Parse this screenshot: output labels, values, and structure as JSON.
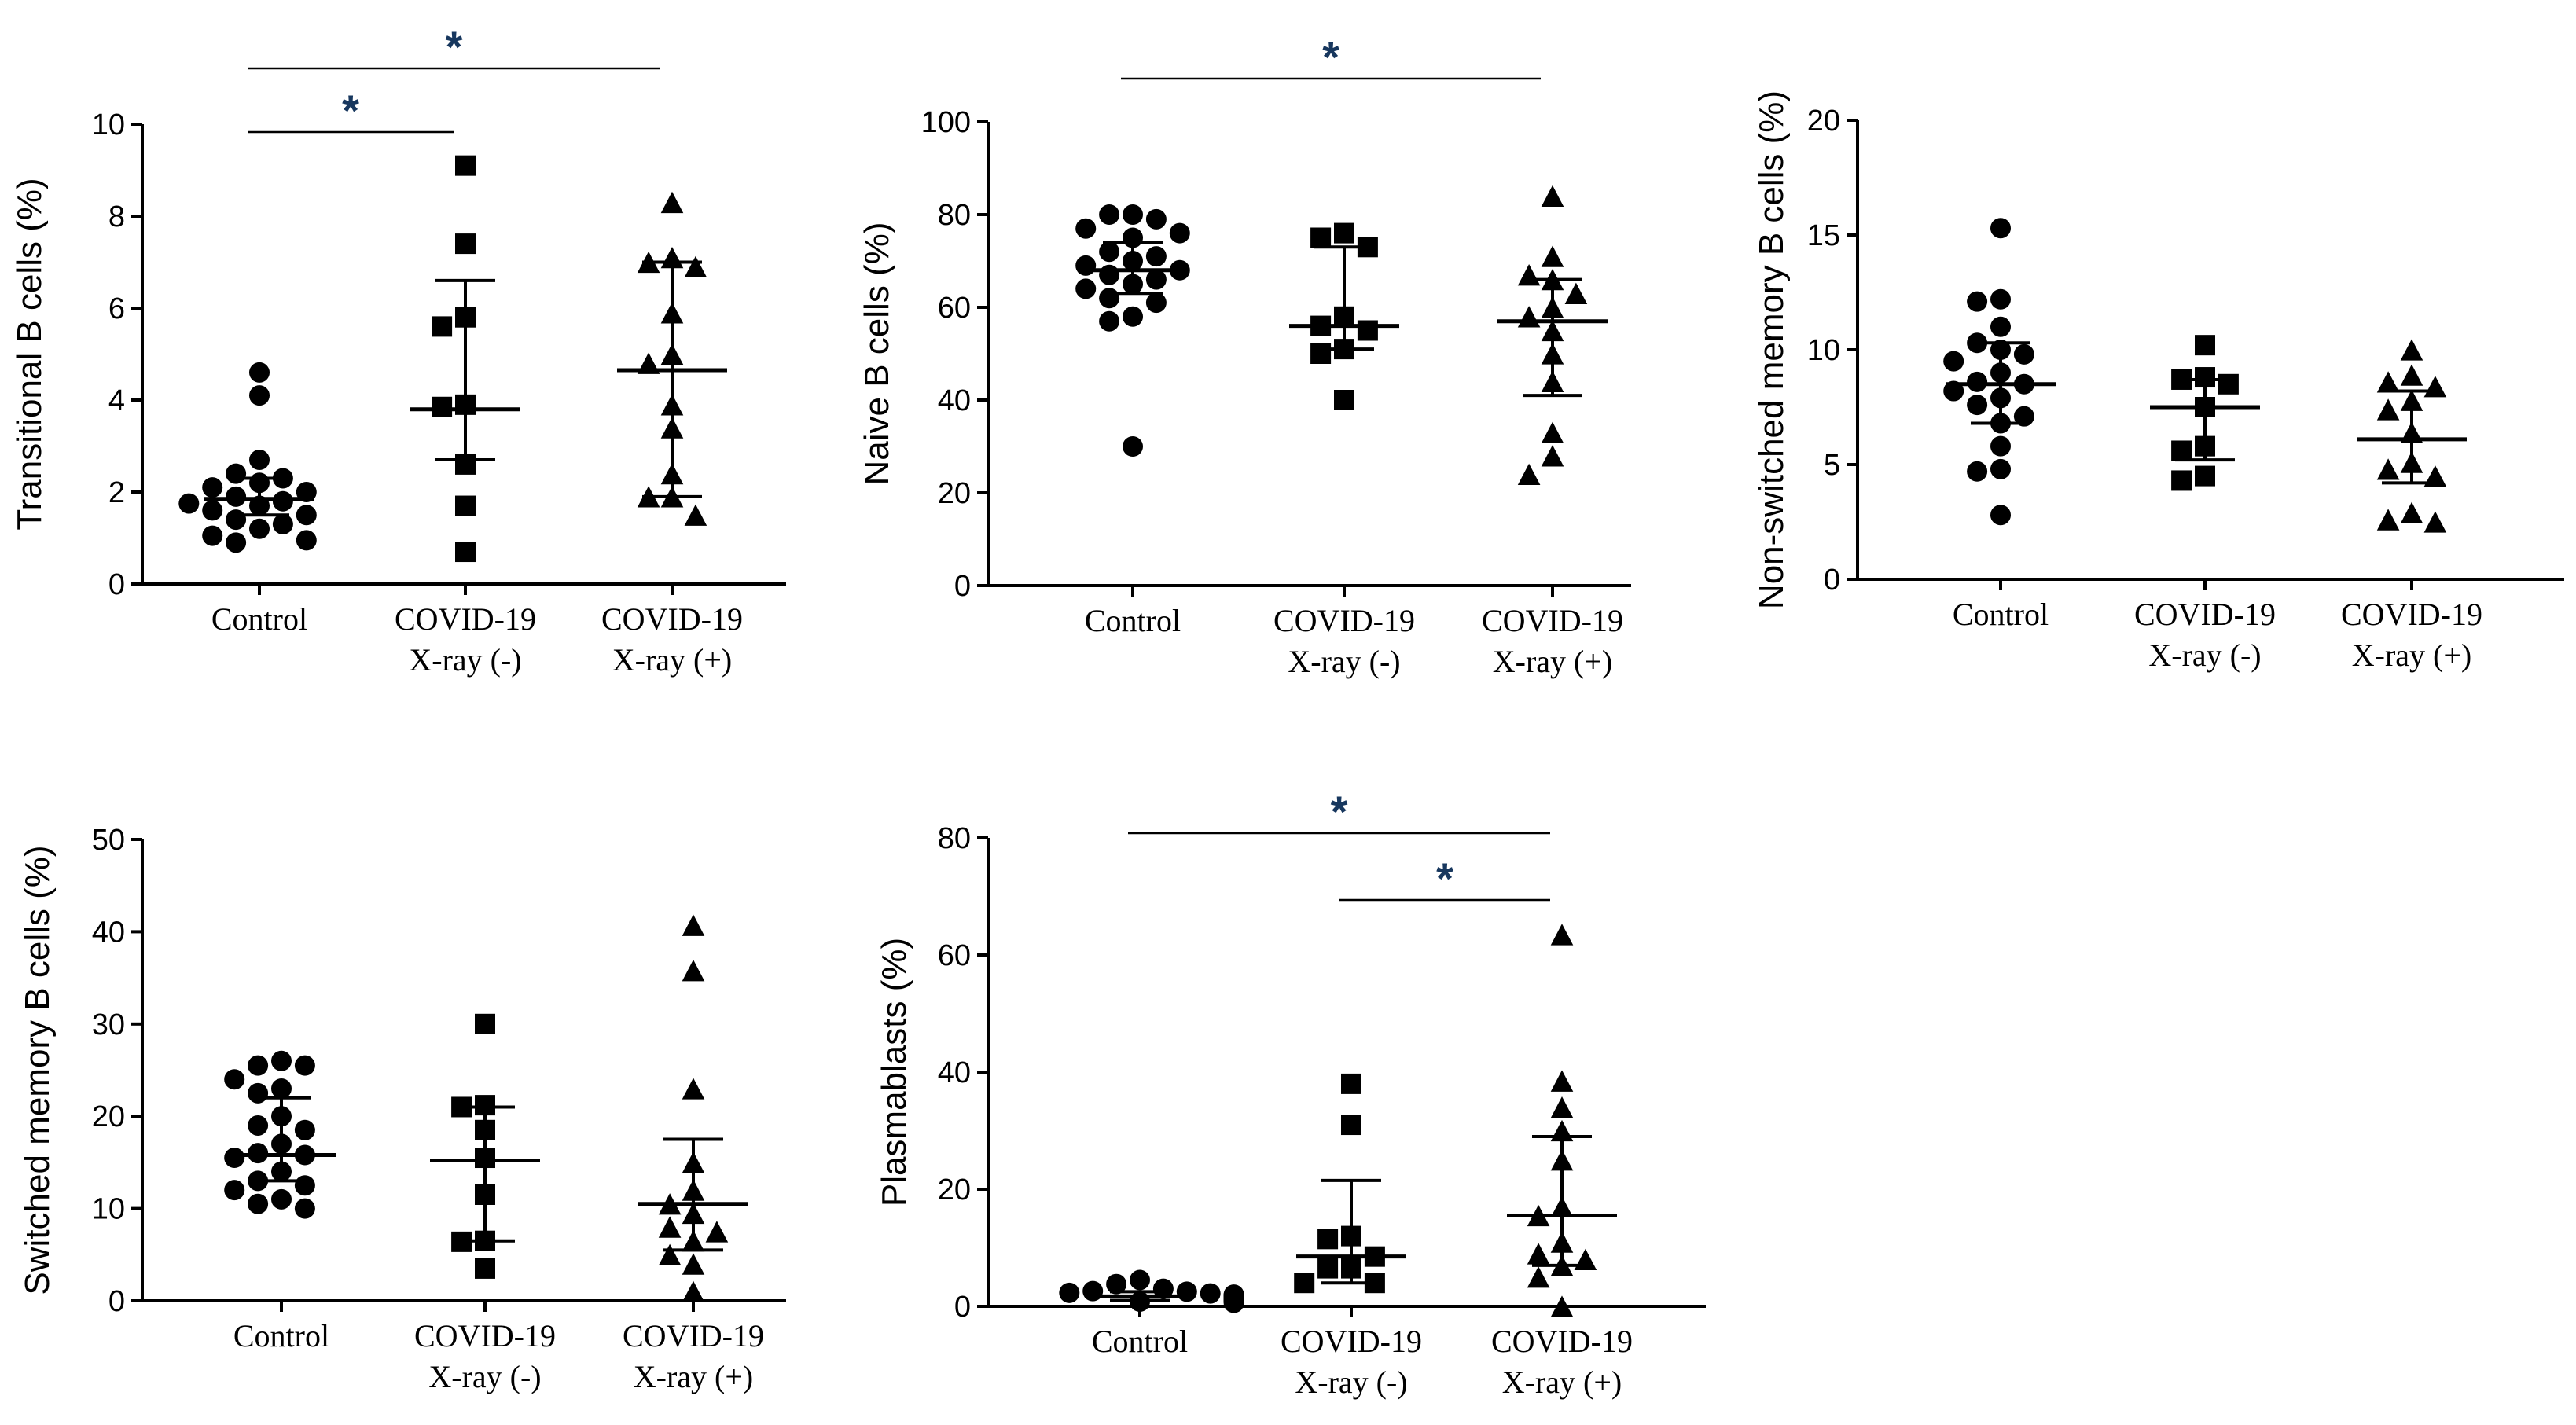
{
  "chart_data": [
    {
      "type": "scatter",
      "ylabel": "Transitional B cells (%)",
      "ylim": [
        0,
        10
      ],
      "yticks": [
        "0",
        "2",
        "4",
        "6",
        "8",
        "10"
      ],
      "categories": [
        {
          "line1": "Control",
          "line2": ""
        },
        {
          "line1": "COVID-19",
          "line2": "X-ray (-)"
        },
        {
          "line1": "COVID-19",
          "line2": "X-ray (+)"
        }
      ],
      "groups": [
        {
          "marker": "circle",
          "median": 1.85,
          "q1": 1.5,
          "q3": 2.3,
          "values": [
            4.6,
            4.1,
            2.7,
            2.4,
            2.3,
            2.2,
            2.1,
            2.0,
            1.9,
            1.8,
            1.75,
            1.7,
            1.6,
            1.5,
            1.4,
            1.3,
            1.2,
            1.05,
            0.95,
            0.9
          ]
        },
        {
          "marker": "square",
          "median": 3.8,
          "q1": 2.7,
          "q3": 6.6,
          "values": [
            9.1,
            7.4,
            5.8,
            5.6,
            3.9,
            3.85,
            2.6,
            1.7,
            0.7
          ]
        },
        {
          "marker": "triangle",
          "median": 4.65,
          "q1": 1.9,
          "q3": 7.0,
          "values": [
            8.3,
            7.1,
            7.0,
            6.9,
            5.9,
            5.0,
            4.8,
            3.9,
            3.4,
            2.4,
            1.9,
            1.9,
            1.5
          ]
        }
      ],
      "significance": [
        {
          "from": 0,
          "to": 2,
          "label": "*"
        },
        {
          "from": 0,
          "to": 1,
          "label": "*"
        }
      ]
    },
    {
      "type": "scatter",
      "ylabel": "Naive B cells (%)",
      "ylim": [
        0,
        100
      ],
      "yticks": [
        "0",
        "20",
        "40",
        "60",
        "80",
        "100"
      ],
      "categories": [
        {
          "line1": "Control",
          "line2": ""
        },
        {
          "line1": "COVID-19",
          "line2": "X-ray (-)"
        },
        {
          "line1": "COVID-19",
          "line2": "X-ray (+)"
        }
      ],
      "groups": [
        {
          "marker": "circle",
          "median": 68,
          "q1": 63,
          "q3": 74,
          "values": [
            80,
            80,
            79,
            77,
            76,
            75,
            72,
            71,
            70,
            69,
            68,
            67,
            66,
            65,
            64,
            62,
            61,
            58,
            57,
            30
          ]
        },
        {
          "marker": "square",
          "median": 56,
          "q1": 51,
          "q3": 73,
          "values": [
            76,
            75,
            73,
            58,
            56,
            55,
            51,
            50,
            40
          ]
        },
        {
          "marker": "triangle",
          "median": 57,
          "q1": 41,
          "q3": 66,
          "values": [
            84,
            71,
            67,
            66,
            63,
            60,
            58,
            55,
            50,
            44,
            33,
            28,
            24
          ]
        }
      ],
      "significance": [
        {
          "from": 0,
          "to": 2,
          "label": "*"
        }
      ]
    },
    {
      "type": "scatter",
      "ylabel": "Non-switched memory B cells (%)",
      "ylim": [
        0,
        20
      ],
      "yticks": [
        "0",
        "5",
        "10",
        "15",
        "20"
      ],
      "categories": [
        {
          "line1": "Control",
          "line2": ""
        },
        {
          "line1": "COVID-19",
          "line2": "X-ray (-)"
        },
        {
          "line1": "COVID-19",
          "line2": "X-ray (+)"
        }
      ],
      "groups": [
        {
          "marker": "circle",
          "median": 8.5,
          "q1": 6.8,
          "q3": 10.3,
          "values": [
            15.3,
            12.2,
            12.1,
            11.0,
            10.3,
            10.0,
            9.8,
            9.5,
            9.0,
            8.6,
            8.5,
            8.2,
            7.9,
            7.6,
            7.1,
            6.8,
            5.8,
            4.8,
            4.7,
            2.8
          ]
        },
        {
          "marker": "square",
          "median": 7.5,
          "q1": 5.2,
          "q3": 8.7,
          "values": [
            10.2,
            8.8,
            8.7,
            8.5,
            7.5,
            5.8,
            5.6,
            4.5,
            4.3
          ]
        },
        {
          "marker": "triangle",
          "median": 6.1,
          "q1": 4.2,
          "q3": 8.2,
          "values": [
            10.0,
            8.9,
            8.6,
            8.4,
            7.8,
            7.4,
            6.4,
            5.1,
            4.8,
            4.5,
            2.9,
            2.6,
            2.5
          ]
        }
      ],
      "significance": []
    },
    {
      "type": "scatter",
      "ylabel": "Switched memory B cells (%)",
      "ylim": [
        0,
        50
      ],
      "yticks": [
        "0",
        "10",
        "20",
        "30",
        "40",
        "50"
      ],
      "categories": [
        {
          "line1": "Control",
          "line2": ""
        },
        {
          "line1": "COVID-19",
          "line2": "X-ray (-)"
        },
        {
          "line1": "COVID-19",
          "line2": "X-ray (+)"
        }
      ],
      "groups": [
        {
          "marker": "circle",
          "median": 15.8,
          "q1": 13,
          "q3": 22,
          "values": [
            26,
            25.5,
            25.5,
            24,
            23,
            22.5,
            20,
            19,
            18.5,
            17,
            16,
            15.8,
            15.5,
            14,
            13,
            12.5,
            12,
            11,
            10.5,
            10
          ]
        },
        {
          "marker": "square",
          "median": 15.2,
          "q1": 6.5,
          "q3": 21,
          "values": [
            30,
            21.2,
            21,
            18.5,
            15.5,
            11.5,
            6.5,
            6.4,
            3.5
          ]
        },
        {
          "marker": "triangle",
          "median": 10.5,
          "q1": 5.5,
          "q3": 17.5,
          "values": [
            40.7,
            35.8,
            23,
            15,
            12,
            10.5,
            9.5,
            8,
            7.5,
            6.5,
            5,
            4,
            1
          ]
        }
      ],
      "significance": []
    },
    {
      "type": "scatter",
      "ylabel": "Plasmablasts (%)",
      "ylim": [
        0,
        80
      ],
      "yticks": [
        "0",
        "20",
        "40",
        "60",
        "80"
      ],
      "categories": [
        {
          "line1": "Control",
          "line2": ""
        },
        {
          "line1": "COVID-19",
          "line2": "X-ray (-)"
        },
        {
          "line1": "COVID-19",
          "line2": "X-ray (+)"
        }
      ],
      "groups": [
        {
          "marker": "circle",
          "median": 1.7,
          "q1": 1.0,
          "q3": 2.5,
          "values": [
            4.5,
            3.8,
            3.0,
            2.6,
            2.5,
            2.3,
            2.2,
            2.0,
            1.9,
            1.8,
            1.7,
            1.6,
            1.4,
            1.3,
            1.2,
            1.1,
            1.0,
            0.9,
            0.8,
            0.6
          ]
        },
        {
          "marker": "square",
          "median": 8.5,
          "q1": 4.0,
          "q3": 21.5,
          "values": [
            38,
            31,
            12,
            11.5,
            8.5,
            6.5,
            6.5,
            4,
            4
          ]
        },
        {
          "marker": "triangle",
          "median": 15.5,
          "q1": 7.0,
          "q3": 29,
          "values": [
            63.5,
            38.5,
            34,
            30,
            25,
            17,
            15.5,
            11,
            9,
            8,
            7,
            5,
            0
          ]
        }
      ],
      "significance": [
        {
          "from": 0,
          "to": 2,
          "label": "*"
        },
        {
          "from": 1,
          "to": 2,
          "label": "*"
        }
      ]
    }
  ]
}
